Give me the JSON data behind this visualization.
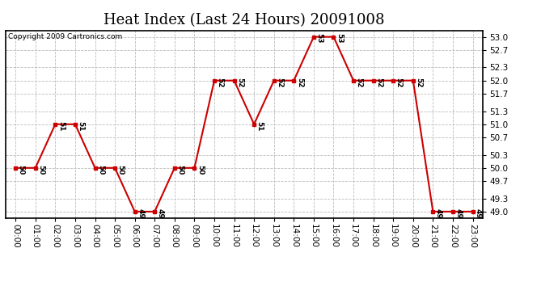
{
  "title": "Heat Index (Last 24 Hours) 20091008",
  "copyright": "Copyright 2009 Cartronics.com",
  "hours": [
    "00:00",
    "01:00",
    "02:00",
    "03:00",
    "04:00",
    "05:00",
    "06:00",
    "07:00",
    "08:00",
    "09:00",
    "10:00",
    "11:00",
    "12:00",
    "13:00",
    "14:00",
    "15:00",
    "16:00",
    "17:00",
    "18:00",
    "19:00",
    "20:00",
    "21:00",
    "22:00",
    "23:00"
  ],
  "values": [
    50,
    50,
    51,
    51,
    50,
    50,
    49,
    49,
    50,
    50,
    52,
    52,
    51,
    52,
    52,
    53,
    53,
    52,
    52,
    52,
    52,
    49,
    49,
    49
  ],
  "ylim_min": 48.85,
  "ylim_max": 53.15,
  "yticks": [
    49.0,
    49.3,
    49.7,
    50.0,
    50.3,
    50.7,
    51.0,
    51.3,
    51.7,
    52.0,
    52.3,
    52.7,
    53.0
  ],
  "line_color": "#cc0000",
  "marker_color": "#cc0000",
  "bg_color": "#ffffff",
  "plot_bg_color": "#ffffff",
  "grid_color": "#bbbbbb",
  "title_fontsize": 13,
  "tick_fontsize": 7.5,
  "label_fontsize": 6.5,
  "copyright_fontsize": 6.5
}
